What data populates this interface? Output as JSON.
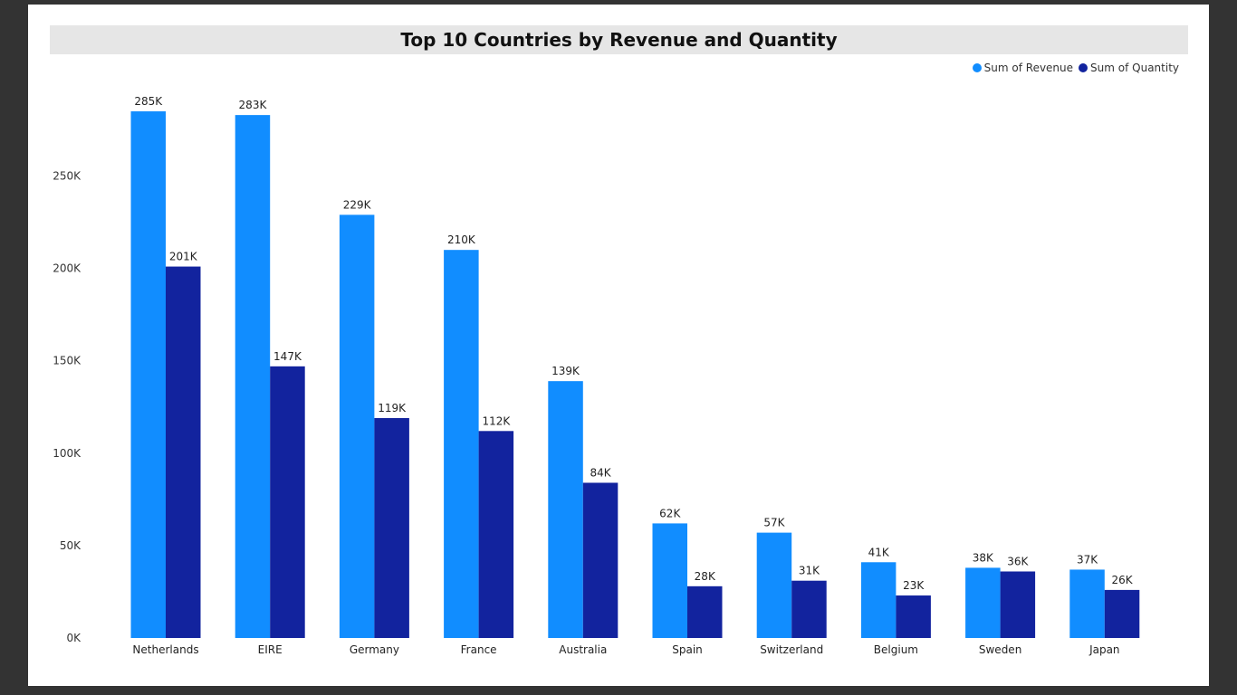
{
  "chart_data": {
    "type": "bar",
    "title": "Top 10 Countries by Revenue and Quantity",
    "categories": [
      "Netherlands",
      "EIRE",
      "Germany",
      "France",
      "Australia",
      "Spain",
      "Switzerland",
      "Belgium",
      "Sweden",
      "Japan"
    ],
    "series": [
      {
        "name": "Sum of Revenue",
        "color": "#118dff",
        "values": [
          285000,
          283000,
          229000,
          210000,
          139000,
          62000,
          57000,
          41000,
          38000,
          37000
        ],
        "labels": [
          "285K",
          "283K",
          "229K",
          "210K",
          "139K",
          "62K",
          "57K",
          "41K",
          "38K",
          "37K"
        ]
      },
      {
        "name": "Sum of Quantity",
        "color": "#12239e",
        "values": [
          201000,
          147000,
          119000,
          112000,
          84000,
          28000,
          31000,
          23000,
          36000,
          26000
        ],
        "labels": [
          "201K",
          "147K",
          "119K",
          "112K",
          "84K",
          "28K",
          "31K",
          "23K",
          "36K",
          "26K"
        ]
      }
    ],
    "yticks": [
      0,
      50000,
      100000,
      150000,
      200000,
      250000
    ],
    "ytick_labels": [
      "0K",
      "50K",
      "100K",
      "150K",
      "200K",
      "250K"
    ],
    "ylim": [
      0,
      300000
    ],
    "xlabel": "",
    "ylabel": "",
    "grid": false,
    "legend_position": "top-right"
  }
}
